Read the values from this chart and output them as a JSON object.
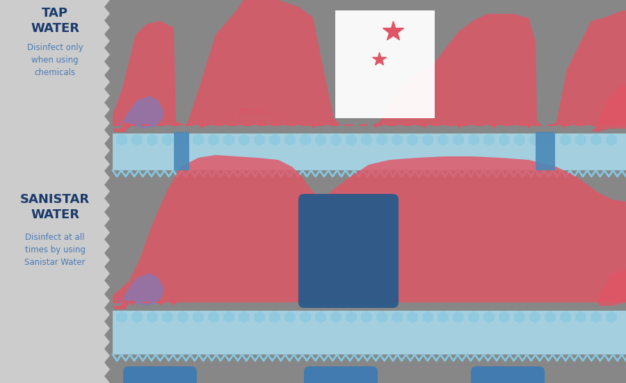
{
  "background_color": "#878787",
  "left_panel_color": "#cccccc",
  "tap_title": "TAP\nWATER",
  "tap_subtitle": "Disinfect only\nwhen using\nchemicals",
  "sanistar_title": "SANISTAR\nWATER",
  "sanistar_subtitle": "Disinfect at all\ntimes by using\nSanistar Water",
  "title_color": "#1a3a6b",
  "subtitle_color": "#4a7ab5",
  "red_color": "#e05565",
  "light_blue_color": "#a8d8ea",
  "mid_blue_color": "#3a7ab5",
  "dark_blue_color": "#2a5a8a",
  "purple_color": "#8878a8",
  "dashed_line_color": "#e05565",
  "annotation_color": "#e05060"
}
